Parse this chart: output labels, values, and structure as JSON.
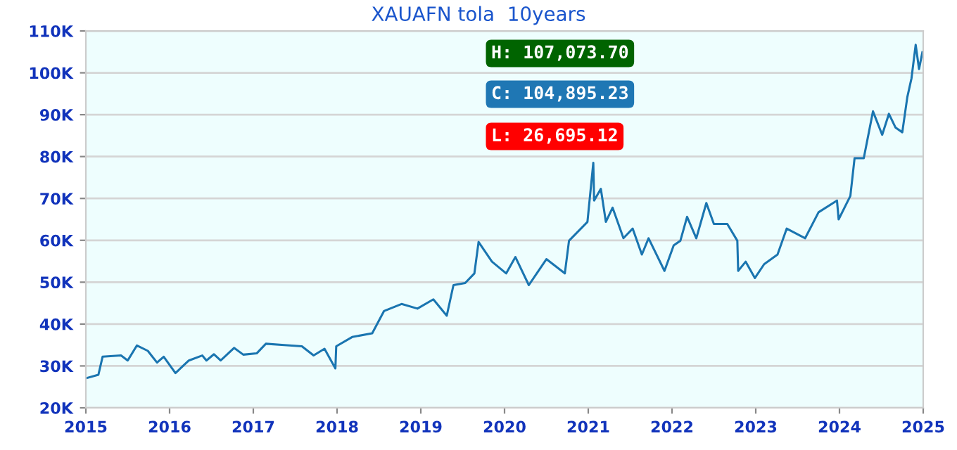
{
  "chart_data": {
    "type": "line",
    "title": "XAUAFN tola  10years",
    "annotations": [
      "H: 107,073.70",
      "C: 104,895.23",
      "L: 26,695.12"
    ],
    "x": [
      2015.01,
      2015.15,
      2015.2,
      2015.42,
      2015.5,
      2015.61,
      2015.74,
      2015.85,
      2015.93,
      2016.07,
      2016.23,
      2016.39,
      2016.44,
      2016.53,
      2016.61,
      2016.77,
      2016.88,
      2017.04,
      2017.15,
      2017.37,
      2017.58,
      2017.72,
      2017.85,
      2017.98,
      2017.99,
      2018.18,
      2018.42,
      2018.56,
      2018.77,
      2018.96,
      2019.15,
      2019.31,
      2019.39,
      2019.53,
      2019.64,
      2019.69,
      2019.85,
      2020.02,
      2020.13,
      2020.29,
      2020.5,
      2020.72,
      2020.77,
      2020.99,
      2021.06,
      2021.07,
      2021.15,
      2021.21,
      2021.29,
      2021.42,
      2021.53,
      2021.64,
      2021.72,
      2021.91,
      2022.02,
      2022.1,
      2022.18,
      2022.29,
      2022.41,
      2022.5,
      2022.66,
      2022.78,
      2022.79,
      2022.88,
      2022.99,
      2023.1,
      2023.26,
      2023.37,
      2023.59,
      2023.75,
      2023.97,
      2023.99,
      2024.13,
      2024.18,
      2024.29,
      2024.4,
      2024.51,
      2024.59,
      2024.67,
      2024.75,
      2024.81,
      2024.86,
      2024.91,
      2024.95,
      2024.99
    ],
    "series": [
      {
        "color": "#1a75b0",
        "values": [
          27100,
          27900,
          32200,
          32500,
          31300,
          34900,
          33600,
          30800,
          32200,
          28300,
          31300,
          32500,
          31300,
          32800,
          31300,
          34300,
          32700,
          33000,
          35300,
          35000,
          34700,
          32500,
          34100,
          29400,
          34700,
          36900,
          37800,
          43100,
          44800,
          43700,
          45900,
          42000,
          49300,
          49800,
          52100,
          59600,
          54900,
          52100,
          56000,
          49300,
          55500,
          52100,
          59900,
          64400,
          78500,
          69500,
          72300,
          64400,
          67800,
          60500,
          62800,
          56600,
          60500,
          52700,
          58800,
          59900,
          65600,
          60500,
          68900,
          63900,
          63900,
          59900,
          52700,
          54900,
          51000,
          54300,
          56600,
          62800,
          60500,
          66700,
          69500,
          65000,
          70600,
          79600,
          79600,
          90800,
          85200,
          90200,
          86900,
          85800,
          94200,
          98700,
          106700,
          100900,
          104900
        ]
      }
    ],
    "xlim": [
      2015,
      2025
    ],
    "xticks": [
      2015,
      2016,
      2017,
      2018,
      2019,
      2020,
      2021,
      2022,
      2023,
      2024,
      2025
    ],
    "ylim": [
      20000,
      110000
    ],
    "yticks": [
      {
        "value": 20000,
        "label": "20K"
      },
      {
        "value": 30000,
        "label": "30K"
      },
      {
        "value": 40000,
        "label": "40K"
      },
      {
        "value": 50000,
        "label": "50K"
      },
      {
        "value": 60000,
        "label": "60K"
      },
      {
        "value": 70000,
        "label": "70K"
      },
      {
        "value": 80000,
        "label": "80K"
      },
      {
        "value": 90000,
        "label": "90K"
      },
      {
        "value": 100000,
        "label": "100K"
      },
      {
        "value": 110000,
        "label": "110K"
      }
    ],
    "grid": "y",
    "marker": "none",
    "line_style": "solid"
  }
}
